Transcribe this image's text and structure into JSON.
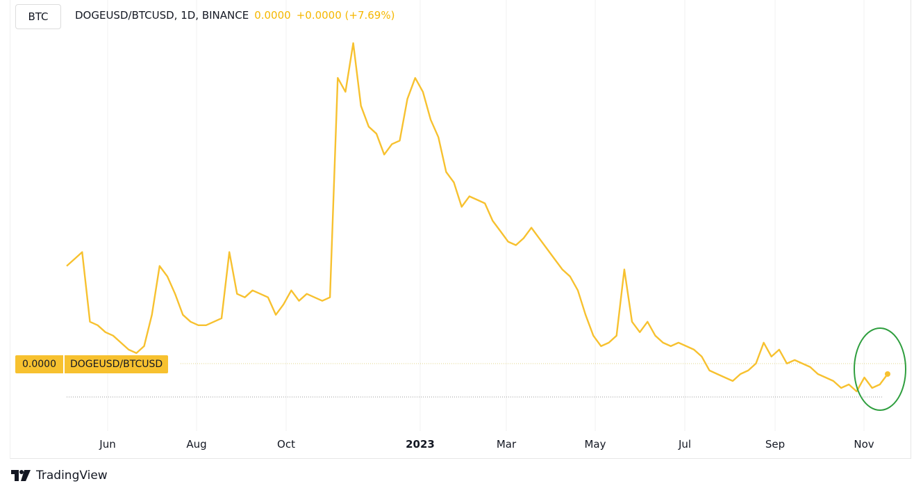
{
  "symbol_button": "BTC",
  "legend": {
    "title": "DOGEUSD/BTCUSD, 1D, BINANCE",
    "last": "0.0000",
    "change": "+0.0000 (+7.69%)"
  },
  "price_tag": {
    "price": "0.0000",
    "name": "DOGEUSD/BTCUSD"
  },
  "brand": "TradingView",
  "colors": {
    "line": "#f7c12f",
    "highlight": "#2e9e3e",
    "grid": "#f0f0f0"
  },
  "chart_data": {
    "type": "line",
    "x_axis": {
      "labels": [
        "Jun",
        "Aug",
        "Oct",
        "2023",
        "Mar",
        "May",
        "Jul",
        "Sep",
        "Nov"
      ],
      "bold_labels": [
        "2023"
      ]
    },
    "grid": true,
    "series": [
      {
        "values": [
          0.36,
          0.38,
          0.4,
          0.2,
          0.19,
          0.17,
          0.16,
          0.14,
          0.12,
          0.11,
          0.13,
          0.22,
          0.36,
          0.33,
          0.28,
          0.22,
          0.2,
          0.19,
          0.19,
          0.2,
          0.21,
          0.4,
          0.28,
          0.27,
          0.29,
          0.28,
          0.27,
          0.22,
          0.25,
          0.29,
          0.26,
          0.28,
          0.27,
          0.26,
          0.27,
          0.9,
          0.86,
          1.0,
          0.82,
          0.76,
          0.74,
          0.68,
          0.71,
          0.72,
          0.84,
          0.9,
          0.86,
          0.78,
          0.73,
          0.63,
          0.6,
          0.53,
          0.56,
          0.55,
          0.54,
          0.49,
          0.46,
          0.43,
          0.42,
          0.44,
          0.47,
          0.44,
          0.41,
          0.38,
          0.35,
          0.33,
          0.29,
          0.22,
          0.16,
          0.13,
          0.14,
          0.16,
          0.35,
          0.2,
          0.17,
          0.2,
          0.16,
          0.14,
          0.13,
          0.14,
          0.13,
          0.12,
          0.1,
          0.06,
          0.05,
          0.04,
          0.03,
          0.05,
          0.06,
          0.08,
          0.14,
          0.1,
          0.12,
          0.08,
          0.09,
          0.08,
          0.07,
          0.05,
          0.04,
          0.03,
          0.01,
          0.02,
          0.0,
          0.04,
          0.01,
          0.02,
          0.05
        ]
      }
    ]
  }
}
